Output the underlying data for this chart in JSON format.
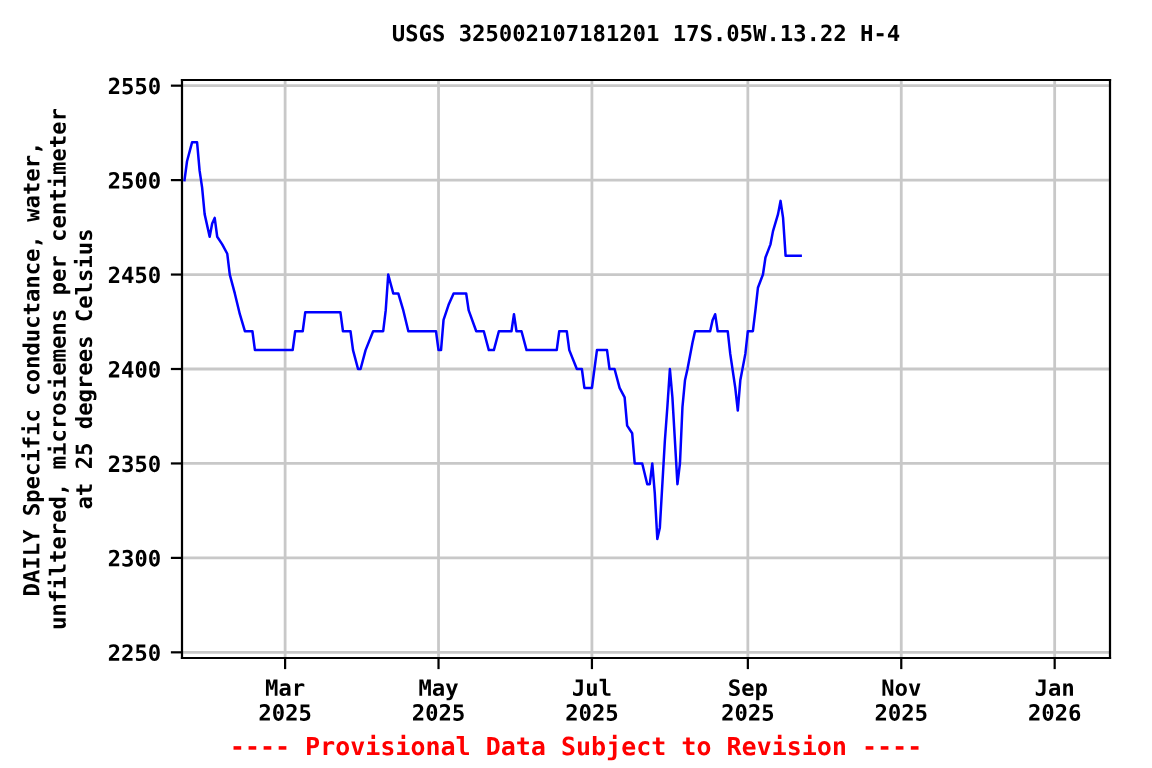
{
  "chart_data": {
    "type": "line",
    "title": "USGS 325002107181201 17S.05W.13.22 H-4",
    "ylabel": "DAILY Specific conductance, water,\nunfiltered, microsiemens per centimeter\nat 25 degrees Celsius",
    "annotations": [
      "---- Provisional Data Subject to Revision ----"
    ],
    "series": [
      {
        "color": "#0000ff",
        "x": [
          "2025-01-20",
          "2025-01-21",
          "2025-01-23",
          "2025-01-25",
          "2025-01-26",
          "2025-01-27",
          "2025-01-28",
          "2025-01-30",
          "2025-01-31",
          "2025-02-01",
          "2025-02-02",
          "2025-02-04",
          "2025-02-06",
          "2025-02-07",
          "2025-02-09",
          "2025-02-11",
          "2025-02-13",
          "2025-02-16",
          "2025-02-17",
          "2025-03-04",
          "2025-03-05",
          "2025-03-08",
          "2025-03-09",
          "2025-03-23",
          "2025-03-24",
          "2025-03-27",
          "2025-03-28",
          "2025-03-30",
          "2025-03-31",
          "2025-04-02",
          "2025-04-05",
          "2025-04-09",
          "2025-04-10",
          "2025-04-11",
          "2025-04-12",
          "2025-04-13",
          "2025-04-15",
          "2025-04-17",
          "2025-04-19",
          "2025-04-30",
          "2025-05-01",
          "2025-05-02",
          "2025-05-03",
          "2025-05-05",
          "2025-05-07",
          "2025-05-12",
          "2025-05-13",
          "2025-05-16",
          "2025-05-19",
          "2025-05-21",
          "2025-05-23",
          "2025-05-25",
          "2025-05-30",
          "2025-05-31",
          "2025-06-01",
          "2025-06-03",
          "2025-06-05",
          "2025-06-17",
          "2025-06-18",
          "2025-06-21",
          "2025-06-22",
          "2025-06-25",
          "2025-06-27",
          "2025-06-28",
          "2025-07-01",
          "2025-07-03",
          "2025-07-07",
          "2025-07-08",
          "2025-07-10",
          "2025-07-12",
          "2025-07-14",
          "2025-07-15",
          "2025-07-17",
          "2025-07-18",
          "2025-07-21",
          "2025-07-23",
          "2025-07-24",
          "2025-07-25",
          "2025-07-26",
          "2025-07-27",
          "2025-07-28",
          "2025-07-29",
          "2025-07-30",
          "2025-07-31",
          "2025-08-01",
          "2025-08-02",
          "2025-08-03",
          "2025-08-04",
          "2025-08-05",
          "2025-08-06",
          "2025-08-07",
          "2025-08-08",
          "2025-08-10",
          "2025-08-11",
          "2025-08-17",
          "2025-08-18",
          "2025-08-19",
          "2025-08-20",
          "2025-08-24",
          "2025-08-25",
          "2025-08-27",
          "2025-08-28",
          "2025-08-29",
          "2025-08-31",
          "2025-09-01",
          "2025-09-03",
          "2025-09-04",
          "2025-09-05",
          "2025-09-07",
          "2025-09-08",
          "2025-09-10",
          "2025-09-11",
          "2025-09-13",
          "2025-09-14",
          "2025-09-15",
          "2025-09-16",
          "2025-09-22"
        ],
        "values": [
          2500,
          2510,
          2520,
          2520,
          2505,
          2496,
          2482,
          2470,
          2477,
          2480,
          2470,
          2466,
          2461,
          2450,
          2440,
          2429,
          2420,
          2420,
          2410,
          2410,
          2420,
          2420,
          2430,
          2430,
          2420,
          2420,
          2410,
          2400,
          2400,
          2410,
          2420,
          2420,
          2431,
          2450,
          2445,
          2440,
          2440,
          2431,
          2420,
          2420,
          2410,
          2410,
          2426,
          2434,
          2440,
          2440,
          2431,
          2420,
          2420,
          2410,
          2410,
          2420,
          2420,
          2429,
          2420,
          2420,
          2410,
          2410,
          2420,
          2420,
          2410,
          2400,
          2400,
          2390,
          2390,
          2410,
          2410,
          2400,
          2400,
          2390,
          2385,
          2370,
          2366,
          2350,
          2350,
          2339,
          2339,
          2350,
          2334,
          2310,
          2316,
          2339,
          2362,
          2380,
          2400,
          2385,
          2362,
          2339,
          2350,
          2380,
          2394,
          2400,
          2414,
          2420,
          2420,
          2426,
          2429,
          2420,
          2420,
          2408,
          2390,
          2378,
          2394,
          2408,
          2420,
          2420,
          2431,
          2443,
          2450,
          2459,
          2466,
          2473,
          2482,
          2489,
          2480,
          2460,
          2460
        ]
      }
    ],
    "xlim": [
      "2025-01-19",
      "2026-01-23"
    ],
    "xticks": [
      {
        "value": "2025-03-01",
        "label": "Mar\n2025"
      },
      {
        "value": "2025-05-01",
        "label": "May\n2025"
      },
      {
        "value": "2025-07-01",
        "label": "Jul\n2025"
      },
      {
        "value": "2025-09-01",
        "label": "Sep\n2025"
      },
      {
        "value": "2025-11-01",
        "label": "Nov\n2025"
      },
      {
        "value": "2026-01-01",
        "label": "Jan\n2026"
      }
    ],
    "ylim": [
      2247,
      2553
    ],
    "yticks": [
      2250,
      2300,
      2350,
      2400,
      2450,
      2500,
      2550
    ],
    "grid": true,
    "legend": false,
    "line_style": "solid",
    "marker": "none"
  }
}
